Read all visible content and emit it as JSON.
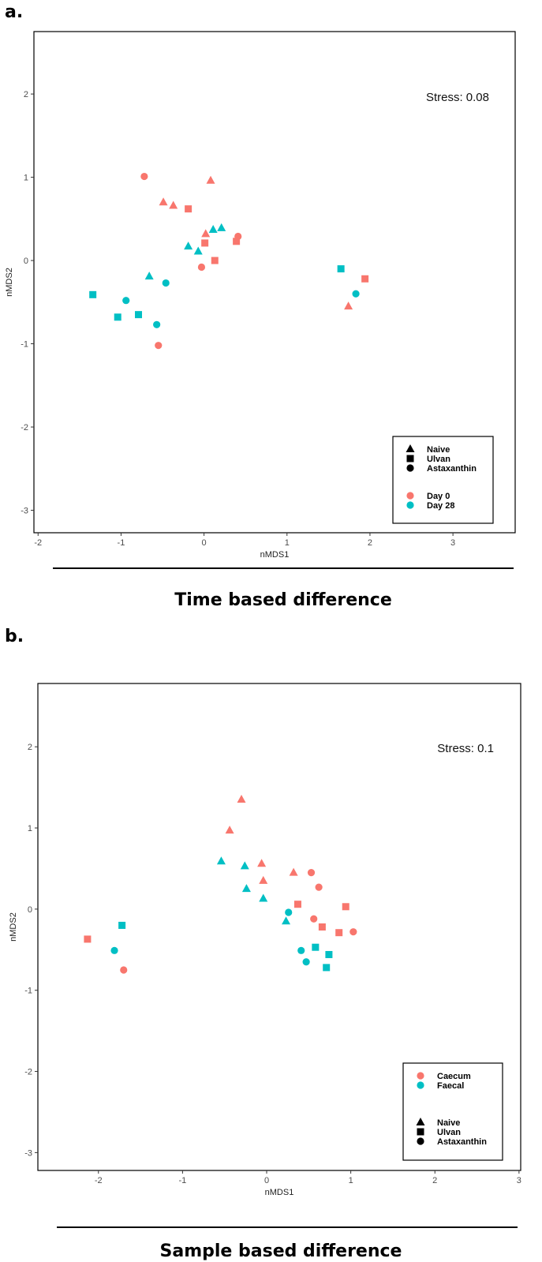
{
  "figure": {
    "panel_a_label": "a.",
    "panel_b_label": "b.",
    "caption_a": "Time based difference",
    "caption_b": "Sample based difference"
  },
  "colors": {
    "red": "#F8766D",
    "teal": "#00BFC4"
  },
  "chart_data": [
    {
      "type": "scatter",
      "id": "a",
      "title": "",
      "xlabel": "nMDS1",
      "ylabel": "nMDS2",
      "xlim": [
        -2.05,
        3.75
      ],
      "ylim": [
        -3.27,
        2.75
      ],
      "xticks": [
        -2,
        -1,
        0,
        1,
        2,
        3
      ],
      "yticks": [
        -3,
        -2,
        -1,
        0,
        1,
        2
      ],
      "annotation": "Stress: 0.08",
      "legend_position": "bottom-right",
      "legend": {
        "shape_items": [
          {
            "shape": "triangle",
            "label": "Naive"
          },
          {
            "shape": "square",
            "label": "Ulvan"
          },
          {
            "shape": "circle",
            "label": "Astaxanthin"
          }
        ],
        "color_items": [
          {
            "color": "red",
            "label": "Day 0"
          },
          {
            "color": "teal",
            "label": "Day 28"
          }
        ],
        "order": "shapes-first"
      },
      "points": [
        {
          "x": -0.72,
          "y": 1.01,
          "shape": "circle",
          "color": "red"
        },
        {
          "x": 0.08,
          "y": 0.96,
          "shape": "triangle",
          "color": "red"
        },
        {
          "x": -0.49,
          "y": 0.7,
          "shape": "triangle",
          "color": "red"
        },
        {
          "x": -0.37,
          "y": 0.66,
          "shape": "triangle",
          "color": "red"
        },
        {
          "x": -0.19,
          "y": 0.62,
          "shape": "square",
          "color": "red"
        },
        {
          "x": 0.02,
          "y": 0.32,
          "shape": "triangle",
          "color": "red"
        },
        {
          "x": 0.41,
          "y": 0.29,
          "shape": "circle",
          "color": "red"
        },
        {
          "x": 0.39,
          "y": 0.23,
          "shape": "square",
          "color": "red"
        },
        {
          "x": 0.01,
          "y": 0.21,
          "shape": "square",
          "color": "red"
        },
        {
          "x": 0.13,
          "y": 0.0,
          "shape": "square",
          "color": "red"
        },
        {
          "x": -0.03,
          "y": -0.08,
          "shape": "circle",
          "color": "red"
        },
        {
          "x": -0.55,
          "y": -1.02,
          "shape": "circle",
          "color": "red"
        },
        {
          "x": 1.94,
          "y": -0.22,
          "shape": "square",
          "color": "red"
        },
        {
          "x": 1.74,
          "y": -0.55,
          "shape": "triangle",
          "color": "red"
        },
        {
          "x": 0.21,
          "y": 0.39,
          "shape": "triangle",
          "color": "teal"
        },
        {
          "x": 0.11,
          "y": 0.37,
          "shape": "triangle",
          "color": "teal"
        },
        {
          "x": -0.19,
          "y": 0.17,
          "shape": "triangle",
          "color": "teal"
        },
        {
          "x": -0.07,
          "y": 0.11,
          "shape": "triangle",
          "color": "teal"
        },
        {
          "x": -0.66,
          "y": -0.19,
          "shape": "triangle",
          "color": "teal"
        },
        {
          "x": -0.46,
          "y": -0.27,
          "shape": "circle",
          "color": "teal"
        },
        {
          "x": -1.34,
          "y": -0.41,
          "shape": "square",
          "color": "teal"
        },
        {
          "x": -0.94,
          "y": -0.48,
          "shape": "circle",
          "color": "teal"
        },
        {
          "x": -0.79,
          "y": -0.65,
          "shape": "square",
          "color": "teal"
        },
        {
          "x": -1.04,
          "y": -0.68,
          "shape": "square",
          "color": "teal"
        },
        {
          "x": -0.57,
          "y": -0.77,
          "shape": "circle",
          "color": "teal"
        },
        {
          "x": 1.65,
          "y": -0.1,
          "shape": "square",
          "color": "teal"
        },
        {
          "x": 1.83,
          "y": -0.4,
          "shape": "circle",
          "color": "teal"
        }
      ]
    },
    {
      "type": "scatter",
      "id": "b",
      "title": "",
      "xlabel": "nMDS1",
      "ylabel": "nMDS2",
      "xlim": [
        -2.72,
        3.02
      ],
      "ylim": [
        -3.22,
        2.78
      ],
      "xticks": [
        -2,
        -1,
        0,
        1,
        2,
        3
      ],
      "yticks": [
        -3,
        -2,
        -1,
        0,
        1,
        2
      ],
      "annotation": "Stress: 0.1",
      "legend_position": "bottom-right",
      "legend": {
        "shape_items": [
          {
            "shape": "triangle",
            "label": "Naive"
          },
          {
            "shape": "square",
            "label": "Ulvan"
          },
          {
            "shape": "circle",
            "label": "Astaxanthin"
          }
        ],
        "color_items": [
          {
            "color": "red",
            "label": "Caecum"
          },
          {
            "color": "teal",
            "label": "Faecal"
          }
        ],
        "order": "colors-first"
      },
      "points": [
        {
          "x": -0.3,
          "y": 1.35,
          "shape": "triangle",
          "color": "red"
        },
        {
          "x": -0.44,
          "y": 0.97,
          "shape": "triangle",
          "color": "red"
        },
        {
          "x": -0.06,
          "y": 0.56,
          "shape": "triangle",
          "color": "red"
        },
        {
          "x": -0.04,
          "y": 0.35,
          "shape": "triangle",
          "color": "red"
        },
        {
          "x": 0.32,
          "y": 0.45,
          "shape": "triangle",
          "color": "red"
        },
        {
          "x": 0.53,
          "y": 0.45,
          "shape": "circle",
          "color": "red"
        },
        {
          "x": 0.62,
          "y": 0.27,
          "shape": "circle",
          "color": "red"
        },
        {
          "x": 0.37,
          "y": 0.06,
          "shape": "square",
          "color": "red"
        },
        {
          "x": 0.94,
          "y": 0.03,
          "shape": "square",
          "color": "red"
        },
        {
          "x": 0.56,
          "y": -0.12,
          "shape": "circle",
          "color": "red"
        },
        {
          "x": 0.66,
          "y": -0.22,
          "shape": "square",
          "color": "red"
        },
        {
          "x": 0.86,
          "y": -0.29,
          "shape": "square",
          "color": "red"
        },
        {
          "x": 1.03,
          "y": -0.28,
          "shape": "circle",
          "color": "red"
        },
        {
          "x": -2.13,
          "y": -0.37,
          "shape": "square",
          "color": "red"
        },
        {
          "x": -1.7,
          "y": -0.75,
          "shape": "circle",
          "color": "red"
        },
        {
          "x": -0.54,
          "y": 0.59,
          "shape": "triangle",
          "color": "teal"
        },
        {
          "x": -0.26,
          "y": 0.53,
          "shape": "triangle",
          "color": "teal"
        },
        {
          "x": -0.24,
          "y": 0.25,
          "shape": "triangle",
          "color": "teal"
        },
        {
          "x": -0.04,
          "y": 0.13,
          "shape": "triangle",
          "color": "teal"
        },
        {
          "x": 0.26,
          "y": -0.04,
          "shape": "circle",
          "color": "teal"
        },
        {
          "x": 0.23,
          "y": -0.15,
          "shape": "triangle",
          "color": "teal"
        },
        {
          "x": 0.58,
          "y": -0.47,
          "shape": "square",
          "color": "teal"
        },
        {
          "x": 0.41,
          "y": -0.51,
          "shape": "circle",
          "color": "teal"
        },
        {
          "x": 0.74,
          "y": -0.56,
          "shape": "square",
          "color": "teal"
        },
        {
          "x": 0.47,
          "y": -0.65,
          "shape": "circle",
          "color": "teal"
        },
        {
          "x": 0.71,
          "y": -0.72,
          "shape": "square",
          "color": "teal"
        },
        {
          "x": -1.72,
          "y": -0.2,
          "shape": "square",
          "color": "teal"
        },
        {
          "x": -1.81,
          "y": -0.51,
          "shape": "circle",
          "color": "teal"
        }
      ]
    }
  ]
}
